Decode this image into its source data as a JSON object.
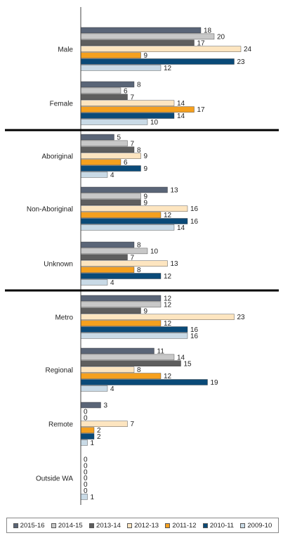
{
  "chart_data": {
    "type": "bar",
    "orientation": "horizontal",
    "categories": [
      "Male",
      "Female",
      "Aboriginal",
      "Non-Aboriginal",
      "Unknown",
      "Metro",
      "Regional",
      "Remote",
      "Outside WA"
    ],
    "groups": [
      [
        "Male",
        "Female"
      ],
      [
        "Aboriginal",
        "Non-Aboriginal",
        "Unknown"
      ],
      [
        "Metro",
        "Regional",
        "Remote",
        "Outside WA"
      ]
    ],
    "series": [
      {
        "name": "2015-16",
        "color": "#5a6577",
        "values": [
          18,
          8,
          5,
          13,
          8,
          12,
          11,
          3,
          0
        ]
      },
      {
        "name": "2014-15",
        "color": "#c8c8c8",
        "values": [
          20,
          6,
          7,
          9,
          10,
          12,
          14,
          0,
          0
        ]
      },
      {
        "name": "2013-14",
        "color": "#5e5e5e",
        "values": [
          17,
          7,
          8,
          9,
          7,
          9,
          15,
          0,
          0
        ]
      },
      {
        "name": "2012-13",
        "color": "#fde5c0",
        "values": [
          24,
          14,
          9,
          16,
          13,
          23,
          8,
          7,
          0
        ]
      },
      {
        "name": "2011-12",
        "color": "#f5a01e",
        "values": [
          9,
          17,
          6,
          12,
          8,
          12,
          12,
          2,
          0
        ]
      },
      {
        "name": "2010-11",
        "color": "#0a4a78",
        "values": [
          23,
          14,
          9,
          16,
          12,
          16,
          19,
          2,
          0
        ]
      },
      {
        "name": "2009-10",
        "color": "#c9dae6",
        "values": [
          12,
          10,
          4,
          14,
          4,
          16,
          4,
          1,
          1
        ]
      }
    ],
    "xlim": [
      0,
      25
    ],
    "legend_position": "bottom",
    "grid": false
  }
}
